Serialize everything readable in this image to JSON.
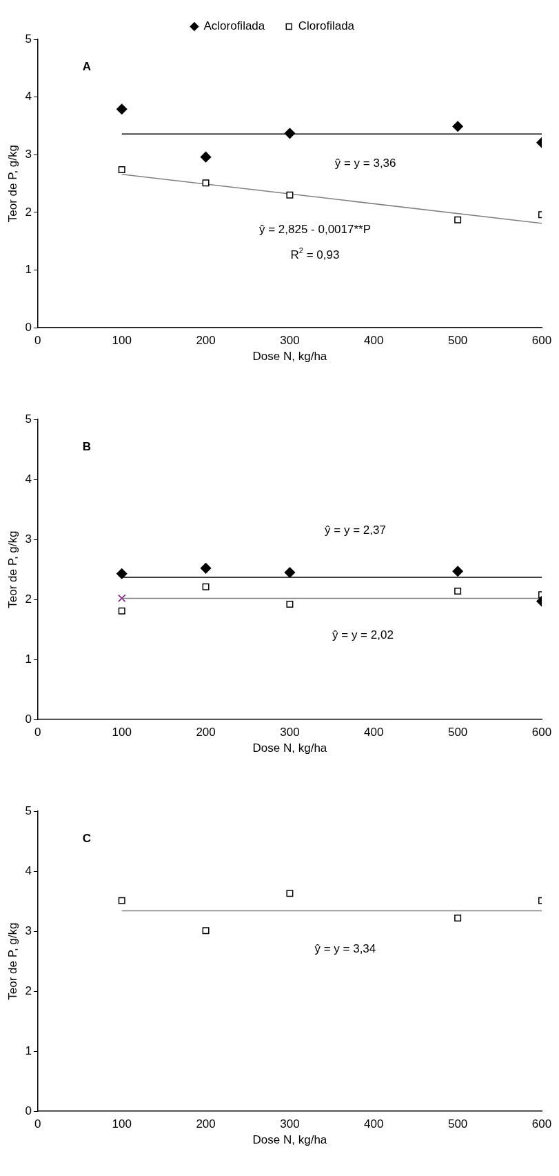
{
  "chart_data": [
    {
      "type": "scatter",
      "title": "A",
      "xlabel": "Dose N, kg/ha",
      "ylabel": "Teor de P, g/kg",
      "xlim": [
        0,
        600
      ],
      "xticks": [
        0,
        100,
        200,
        300,
        400,
        500,
        600
      ],
      "ylim": [
        0,
        5
      ],
      "yticks": [
        0,
        1,
        2,
        3,
        4,
        5
      ],
      "grid": false,
      "legend": "top",
      "series": [
        {
          "name": "Aclorofilada",
          "color": "#000000",
          "marker": "diamond",
          "x": [
            100,
            200,
            300,
            500,
            600
          ],
          "values": [
            3.79,
            2.96,
            3.37,
            3.49,
            3.21
          ]
        },
        {
          "name": "Clorofilada",
          "color": "#000000",
          "marker": "square",
          "x": [
            100,
            200,
            300,
            500,
            600
          ],
          "values": [
            2.74,
            2.51,
            2.3,
            1.87,
            1.96
          ]
        },
        {
          "type": "line",
          "color": "#000000",
          "line_style": "solid",
          "marker": "none",
          "x": [
            100,
            600
          ],
          "values": [
            3.36,
            3.36
          ]
        },
        {
          "type": "line",
          "color": "#808080",
          "line_style": "solid",
          "marker": "none",
          "x": [
            100,
            600
          ],
          "values": [
            2.66,
            1.81
          ]
        }
      ],
      "annotations": [
        "ŷ = y = 3,36",
        "ŷ = 2,825 - 0,0017**P",
        "R$^{2}$ = 0,93"
      ]
    },
    {
      "type": "scatter",
      "title": "B",
      "xlabel": "Dose N, kg/ha",
      "ylabel": "Teor de P, g/kg",
      "xlim": [
        0,
        600
      ],
      "xticks": [
        0,
        100,
        200,
        300,
        400,
        500,
        600
      ],
      "ylim": [
        0,
        5
      ],
      "yticks": [
        0,
        1,
        2,
        3,
        4,
        5
      ],
      "grid": false,
      "series": [
        {
          "color": "#000000",
          "marker": "diamond",
          "x": [
            100,
            200,
            300,
            500,
            600
          ],
          "values": [
            2.43,
            2.52,
            2.45,
            2.47,
            1.97
          ]
        },
        {
          "color": "#000000",
          "marker": "square",
          "x": [
            100,
            200,
            300,
            500,
            600
          ],
          "values": [
            1.81,
            2.21,
            1.92,
            2.14,
            2.08
          ]
        },
        {
          "type": "line",
          "color": "#000000",
          "line_style": "solid",
          "marker": "none",
          "x": [
            100,
            600
          ],
          "values": [
            2.37,
            2.37
          ]
        },
        {
          "type": "line",
          "color": "#808080",
          "line_style": "solid",
          "marker": "none",
          "x": [
            100,
            600
          ],
          "values": [
            2.02,
            2.02
          ]
        },
        {
          "color": "#800080",
          "marker": "cross",
          "x": [
            100
          ],
          "values": [
            2.02
          ]
        }
      ],
      "annotations": [
        "ŷ = y = 2,37",
        "ŷ = y = 2,02"
      ]
    },
    {
      "type": "scatter",
      "title": "C",
      "xlabel": "Dose N, kg/ha",
      "ylabel": "Teor de P, g/kg",
      "xlim": [
        0,
        600
      ],
      "xticks": [
        0,
        100,
        200,
        300,
        400,
        500,
        600
      ],
      "ylim": [
        0,
        5
      ],
      "yticks": [
        0,
        1,
        2,
        3,
        4,
        5
      ],
      "grid": false,
      "series": [
        {
          "color": "#000000",
          "marker": "square",
          "x": [
            100,
            200,
            300,
            500,
            600
          ],
          "values": [
            3.51,
            3.01,
            3.63,
            3.22,
            3.51
          ]
        },
        {
          "type": "line",
          "color": "#808080",
          "line_style": "solid",
          "marker": "none",
          "x": [
            100,
            600
          ],
          "values": [
            3.34,
            3.34
          ]
        }
      ],
      "annotations": [
        "ŷ = y = 3,34"
      ]
    }
  ]
}
